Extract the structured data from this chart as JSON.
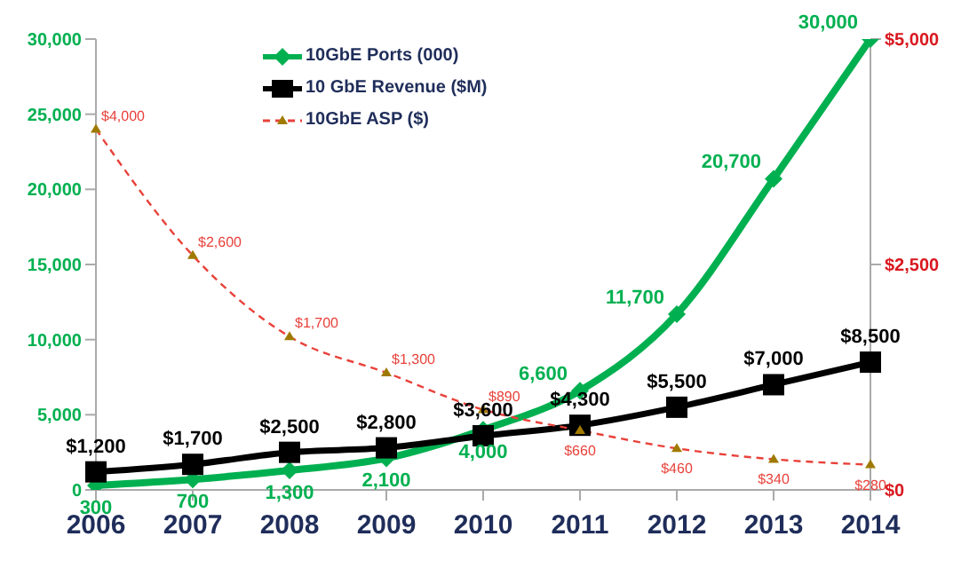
{
  "chart_data": {
    "type": "line",
    "categories": [
      "2006",
      "2007",
      "2008",
      "2009",
      "2010",
      "2011",
      "2012",
      "2013",
      "2014"
    ],
    "series": [
      {
        "name": "10GbE Ports (000)",
        "color": "#00b050",
        "marker": "diamond",
        "line_style": "solid",
        "values": [
          300,
          700,
          1300,
          2100,
          4000,
          6600,
          11700,
          20700,
          30000
        ],
        "value_labels": [
          "300",
          "700",
          "1,300",
          "2,100",
          "4,000",
          "6,600",
          "11,700",
          "20,700",
          "30,000"
        ]
      },
      {
        "name": "10 GbE Revenue ($M)",
        "color": "#000000",
        "marker": "square",
        "line_style": "solid",
        "values": [
          1200,
          1700,
          2500,
          2800,
          3600,
          4300,
          5500,
          7000,
          8500
        ],
        "value_labels": [
          "$1,200",
          "$1,700",
          "$2,500",
          "$2,800",
          "$3,600",
          "$4,300",
          "$5,500",
          "$7,000",
          "$8,500"
        ]
      },
      {
        "name": "10GbE ASP ($)",
        "color": "#e8413a",
        "marker": "triangle",
        "line_style": "dashed",
        "axis": "y2",
        "values": [
          4000,
          2600,
          1700,
          1300,
          890,
          660,
          460,
          340,
          280
        ],
        "value_labels": [
          "$4,000",
          "$2,600",
          "$1,700",
          "$1,300",
          "$890",
          "$660",
          "$460",
          "$340",
          "$280"
        ]
      }
    ],
    "ylim": [
      0,
      30000
    ],
    "yticks": [
      {
        "value": 0,
        "label": "0"
      },
      {
        "value": 5000,
        "label": "5,000"
      },
      {
        "value": 10000,
        "label": "10,000"
      },
      {
        "value": 15000,
        "label": "15,000"
      },
      {
        "value": 20000,
        "label": "20,000"
      },
      {
        "value": 25000,
        "label": "25,000"
      },
      {
        "value": 30000,
        "label": "30,000"
      }
    ],
    "y2lim": [
      0,
      5000
    ],
    "y2ticks": [
      {
        "value": 0,
        "label": "$0"
      },
      {
        "value": 2500,
        "label": "$2,500"
      },
      {
        "value": 5000,
        "label": "$5,000"
      }
    ],
    "legend": "top left",
    "grid": false
  }
}
